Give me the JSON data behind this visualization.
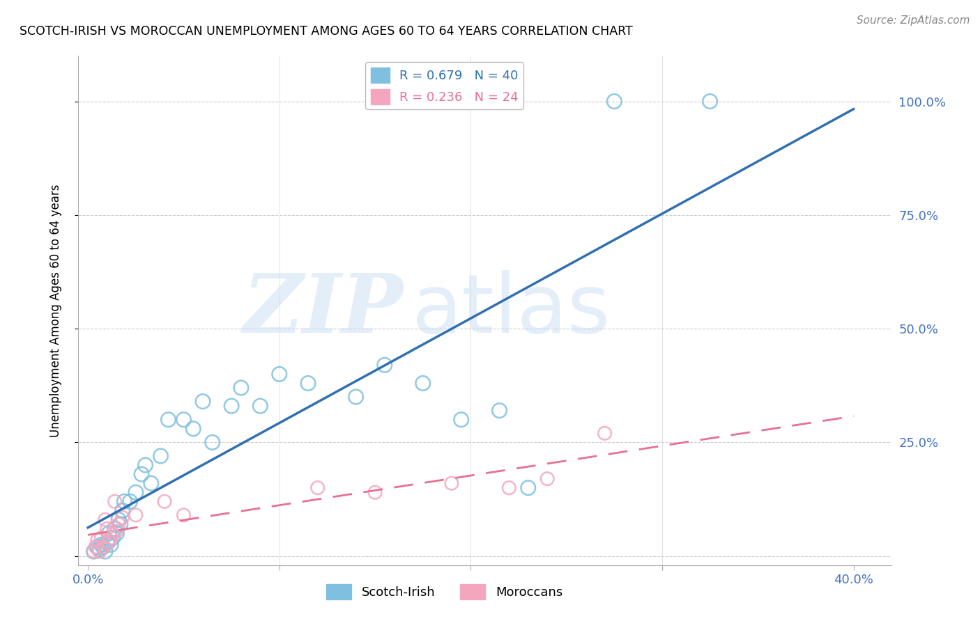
{
  "title": "SCOTCH-IRISH VS MOROCCAN UNEMPLOYMENT AMONG AGES 60 TO 64 YEARS CORRELATION CHART",
  "source": "Source: ZipAtlas.com",
  "ylabel": "Unemployment Among Ages 60 to 64 years",
  "xlim": [
    -0.005,
    0.42
  ],
  "ylim": [
    -0.02,
    1.1
  ],
  "xticks": [
    0.0,
    0.1,
    0.2,
    0.3,
    0.4
  ],
  "xticklabels": [
    "0.0%",
    "",
    "",
    "",
    "40.0%"
  ],
  "yticks": [
    0.0,
    0.25,
    0.5,
    0.75,
    1.0
  ],
  "yticklabels": [
    "",
    "25.0%",
    "50.0%",
    "75.0%",
    "100.0%"
  ],
  "blue_R": "0.679",
  "blue_N": "40",
  "pink_R": "0.236",
  "pink_N": "24",
  "blue_color": "#7fbfdf",
  "pink_color": "#f4a6be",
  "blue_line_color": "#3070b0",
  "pink_line_color": "#e87090",
  "axis_tick_color": "#4472C4",
  "grid_color": "#cccccc",
  "scotch_irish_x": [
    0.003,
    0.005,
    0.006,
    0.007,
    0.008,
    0.009,
    0.01,
    0.011,
    0.012,
    0.013,
    0.014,
    0.015,
    0.016,
    0.017,
    0.018,
    0.019,
    0.022,
    0.025,
    0.028,
    0.03,
    0.033,
    0.038,
    0.042,
    0.05,
    0.055,
    0.06,
    0.065,
    0.075,
    0.08,
    0.09,
    0.1,
    0.115,
    0.14,
    0.155,
    0.175,
    0.195,
    0.215,
    0.23,
    0.275,
    0.325
  ],
  "scotch_irish_y": [
    0.01,
    0.02,
    0.015,
    0.025,
    0.02,
    0.01,
    0.03,
    0.05,
    0.025,
    0.04,
    0.06,
    0.05,
    0.08,
    0.07,
    0.1,
    0.12,
    0.12,
    0.14,
    0.18,
    0.2,
    0.16,
    0.22,
    0.3,
    0.3,
    0.28,
    0.34,
    0.25,
    0.33,
    0.37,
    0.33,
    0.4,
    0.38,
    0.35,
    0.42,
    0.38,
    0.3,
    0.32,
    0.15,
    1.0,
    1.0
  ],
  "moroccan_x": [
    0.003,
    0.004,
    0.005,
    0.006,
    0.007,
    0.008,
    0.009,
    0.01,
    0.011,
    0.012,
    0.013,
    0.014,
    0.015,
    0.016,
    0.018,
    0.025,
    0.04,
    0.05,
    0.12,
    0.15,
    0.19,
    0.22,
    0.24,
    0.27
  ],
  "moroccan_y": [
    0.01,
    0.02,
    0.035,
    0.01,
    0.04,
    0.02,
    0.08,
    0.06,
    0.03,
    0.04,
    0.05,
    0.12,
    0.055,
    0.07,
    0.085,
    0.09,
    0.12,
    0.09,
    0.15,
    0.14,
    0.16,
    0.15,
    0.17,
    0.27
  ]
}
